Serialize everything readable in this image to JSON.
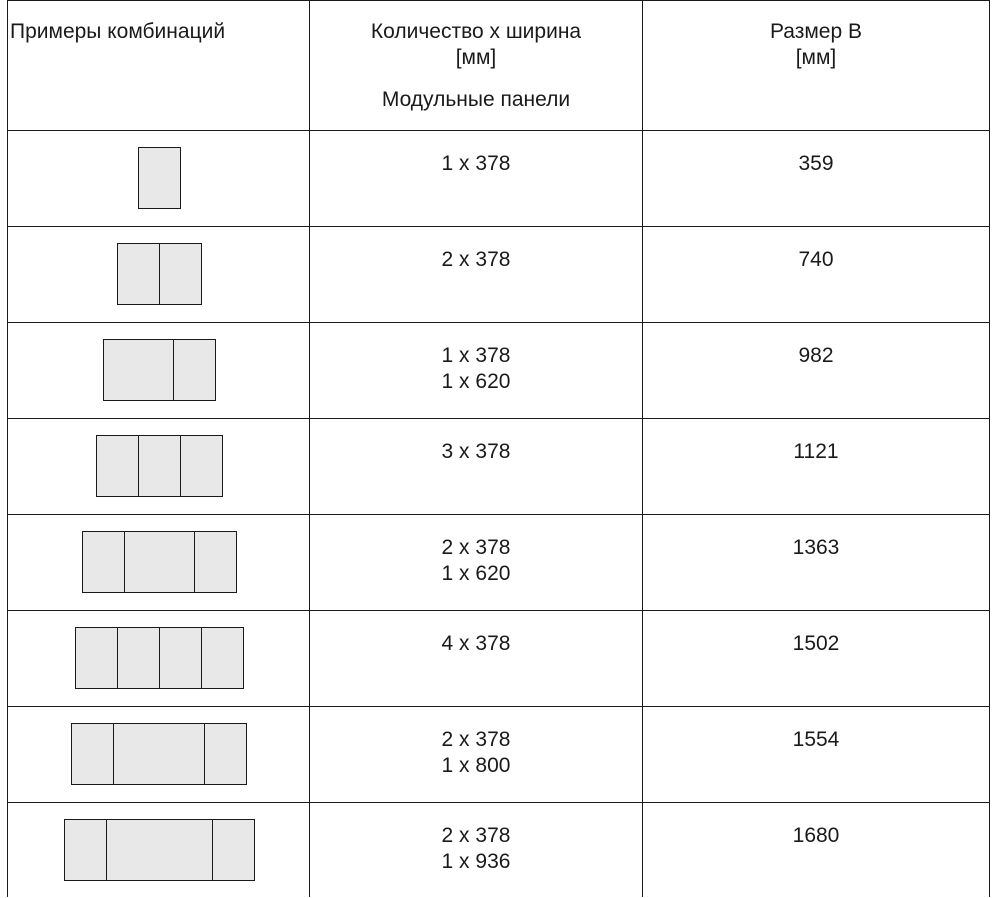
{
  "header": {
    "col1": "Примеры комбинаций",
    "col2_line1": "Количество х ширина",
    "col2_line2": "[мм]",
    "col2_sub": "Модульные панели",
    "col3_line1": "Размер B",
    "col3_line2": "[мм]"
  },
  "rows": [
    {
      "panels": [
        378
      ],
      "qty": [
        "1 x 378"
      ],
      "size": "359"
    },
    {
      "panels": [
        378,
        378
      ],
      "qty": [
        "2 x 378"
      ],
      "size": "740"
    },
    {
      "panels": [
        620,
        378
      ],
      "qty": [
        "1 x 378",
        "1 x 620"
      ],
      "size": "982"
    },
    {
      "panels": [
        378,
        378,
        378
      ],
      "qty": [
        "3 x 378"
      ],
      "size": "1121"
    },
    {
      "panels": [
        378,
        620,
        378
      ],
      "qty": [
        "2 x 378",
        "1 x 620"
      ],
      "size": "1363"
    },
    {
      "panels": [
        378,
        378,
        378,
        378
      ],
      "qty": [
        "4 x 378"
      ],
      "size": "1502"
    },
    {
      "panels": [
        378,
        800,
        378
      ],
      "qty": [
        "2 x 378",
        "1 x 800"
      ],
      "size": "1554"
    },
    {
      "panels": [
        378,
        936,
        378
      ],
      "qty": [
        "2 x 378",
        "1 x 936"
      ],
      "size": "1680"
    }
  ],
  "colors": {
    "line": "#1a1a1a",
    "panel_fill": "#e8e8e9"
  }
}
